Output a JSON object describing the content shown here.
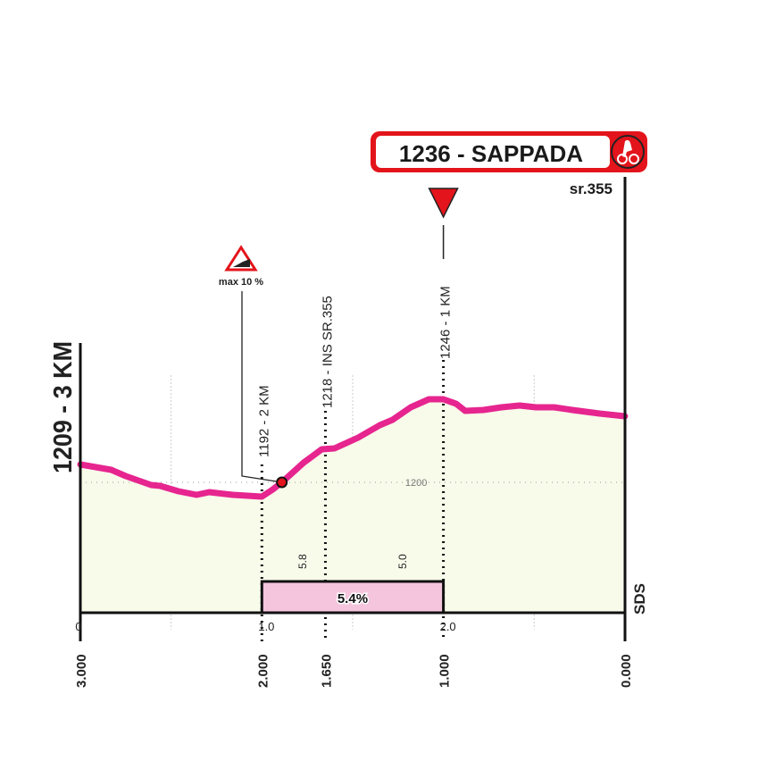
{
  "finish_label": {
    "text": "1236 - SAPPADA",
    "road": "sr.355",
    "icon": "cyclist-finish-icon"
  },
  "start_label": "1209 - 3 KM",
  "sds_label": "SDS",
  "max_gradient_label": "max 10 %",
  "colors": {
    "profile": "#e6258f",
    "fill": "#f8faea",
    "gradient_box": "#f5c5dd",
    "accent_red": "#e3141b"
  },
  "chart_data": {
    "type": "area",
    "xlabel": "",
    "ylabel": "",
    "xlim": [
      0,
      3
    ],
    "ylim": [
      1127,
      1300
    ],
    "grid": true,
    "x_km": [
      0,
      0.17,
      0.25,
      0.39,
      0.44,
      0.54,
      0.64,
      0.71,
      0.84,
      1.0,
      1.06,
      1.11,
      1.23,
      1.33,
      1.4,
      1.53,
      1.65,
      1.72,
      1.82,
      1.92,
      2.0,
      2.07,
      2.12,
      2.22,
      2.32,
      2.42,
      2.51,
      2.61,
      2.71,
      2.86,
      3.0
    ],
    "elevation_m": [
      1210,
      1207,
      1203.5,
      1198.5,
      1198,
      1195,
      1193,
      1194.5,
      1193,
      1192,
      1196,
      1200,
      1211,
      1218.5,
      1219,
      1225,
      1232,
      1235,
      1242,
      1246.5,
      1246.5,
      1244,
      1240,
      1240.5,
      1242,
      1243,
      1242,
      1242,
      1240.5,
      1238.5,
      1237
    ],
    "reference_elevation": {
      "value": 1200,
      "label": "1200"
    },
    "top_ticks": [
      {
        "km": 0,
        "label": "0"
      },
      {
        "km": 1,
        "label": "1.0"
      },
      {
        "km": 2,
        "label": "2.0"
      }
    ],
    "distance_to_go_ticks": [
      {
        "km": 0,
        "label": "3.000"
      },
      {
        "km": 1,
        "label": "2.000"
      },
      {
        "km": 1.35,
        "label": "1.650"
      },
      {
        "km": 2,
        "label": "1.000"
      },
      {
        "km": 3,
        "label": "0.000"
      }
    ],
    "waypoints": [
      {
        "km": 1,
        "label": "1192 - 2 KM"
      },
      {
        "km": 1.35,
        "label": "1218 - INS SR.355"
      },
      {
        "km": 2,
        "label": "1246 - 1 KM",
        "marker": "red-triangle"
      }
    ],
    "segment_gradients": [
      {
        "km": 1.22,
        "label": "5.8"
      },
      {
        "km": 1.77,
        "label": "5.0"
      }
    ],
    "gradient_box": {
      "from_km": 1,
      "to_km": 2,
      "label": "5.4%"
    },
    "max_gradient_point": {
      "km": 1.11,
      "elevation": 1200
    }
  }
}
